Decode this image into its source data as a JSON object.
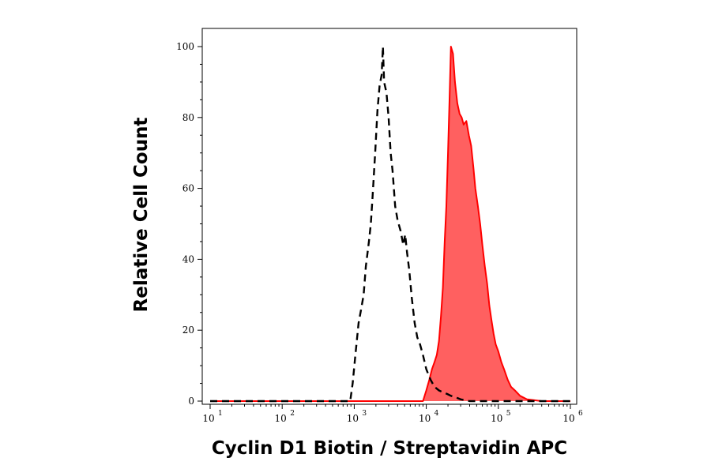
{
  "chart_data": {
    "type": "area",
    "xlabel": "Cyclin D1 Biotin / Streptavidin APC",
    "ylabel": "Relative Cell Count",
    "x_scale": "log",
    "xlim": [
      10,
      1000000
    ],
    "ylim": [
      0,
      100
    ],
    "x_ticks": [
      {
        "base": "10",
        "exp": "1",
        "value": 10
      },
      {
        "base": "10",
        "exp": "2",
        "value": 100
      },
      {
        "base": "10",
        "exp": "3",
        "value": 1000
      },
      {
        "base": "10",
        "exp": "4",
        "value": 10000
      },
      {
        "base": "10",
        "exp": "5",
        "value": 100000
      },
      {
        "base": "10",
        "exp": "6",
        "value": 1000000
      }
    ],
    "y_ticks": [
      {
        "label": "0",
        "value": 0
      },
      {
        "label": "20",
        "value": 20
      },
      {
        "label": "40",
        "value": 40
      },
      {
        "label": "60",
        "value": 60
      },
      {
        "label": "80",
        "value": 80
      },
      {
        "label": "100",
        "value": 100
      }
    ],
    "grid": false,
    "legend": "none",
    "series": [
      {
        "style": "dashed-line",
        "color": "#000000",
        "x": [
          10,
          100,
          880,
          950,
          1050,
          1150,
          1250,
          1350,
          1450,
          1600,
          1700,
          1800,
          1950,
          2100,
          2250,
          2400,
          2500,
          2600,
          2800,
          3000,
          3200,
          3400,
          3700,
          4000,
          4400,
          4800,
          5100,
          5400,
          5800,
          6300,
          6900,
          7500,
          8200,
          9000,
          10000,
          11500,
          13000,
          15000,
          17000,
          19500,
          22000,
          26000,
          30000,
          40000,
          100000,
          1000000
        ],
        "y": [
          0,
          0,
          0,
          5,
          14,
          22,
          26,
          30,
          38,
          45,
          50,
          58,
          70,
          82,
          89,
          92,
          100,
          90,
          87,
          80,
          70,
          65,
          55,
          51,
          48,
          44,
          47,
          42,
          37,
          29,
          22,
          18,
          16,
          13,
          9,
          6,
          4,
          3,
          2.5,
          2,
          1.5,
          1,
          0.5,
          0,
          0,
          0
        ]
      },
      {
        "style": "filled-area",
        "color": "#ff0000",
        "fill": "#ff6060",
        "x": [
          10,
          1000,
          9000,
          10000,
          11000,
          12000,
          13000,
          14000,
          15000,
          16000,
          17000,
          18000,
          19000,
          20000,
          21000,
          22000,
          23500,
          25000,
          27000,
          29000,
          31000,
          33000,
          36000,
          39000,
          42000,
          45000,
          48000,
          52000,
          56000,
          60000,
          65000,
          70000,
          75000,
          80000,
          86000,
          92000,
          100000,
          110000,
          120000,
          135000,
          150000,
          170000,
          200000,
          250000,
          400000,
          1000000
        ],
        "y": [
          0,
          0,
          0,
          3,
          6,
          9,
          11,
          13,
          17,
          24,
          32,
          45,
          55,
          70,
          85,
          100,
          98,
          90,
          84,
          81,
          80,
          78,
          79,
          75,
          72,
          66,
          60,
          55,
          50,
          44,
          38,
          33,
          27,
          23,
          19,
          16,
          14,
          11,
          9,
          6,
          4,
          3,
          1.5,
          0.5,
          0,
          0
        ]
      }
    ]
  }
}
